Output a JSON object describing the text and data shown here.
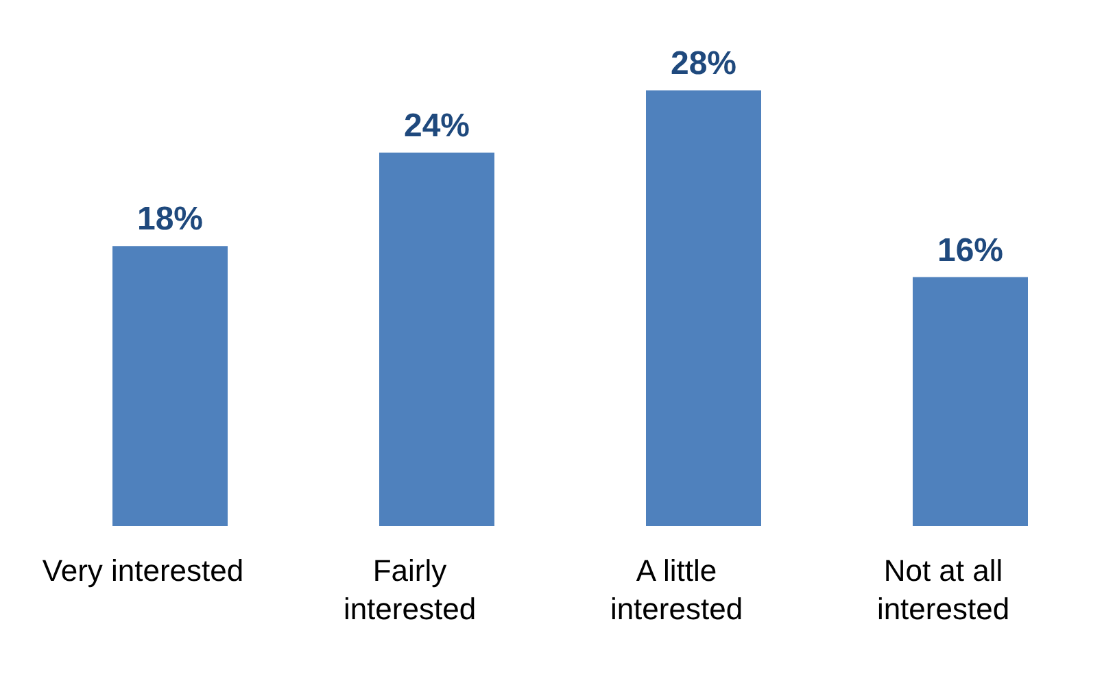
{
  "chart_data": {
    "type": "bar",
    "categories": [
      "Very interested",
      "Fairly interested",
      "A little interested",
      "Not at all interested"
    ],
    "values": [
      18,
      24,
      28,
      16
    ],
    "value_labels": [
      "18%",
      "24%",
      "28%",
      "16%"
    ],
    "color": "#4f81bd"
  }
}
